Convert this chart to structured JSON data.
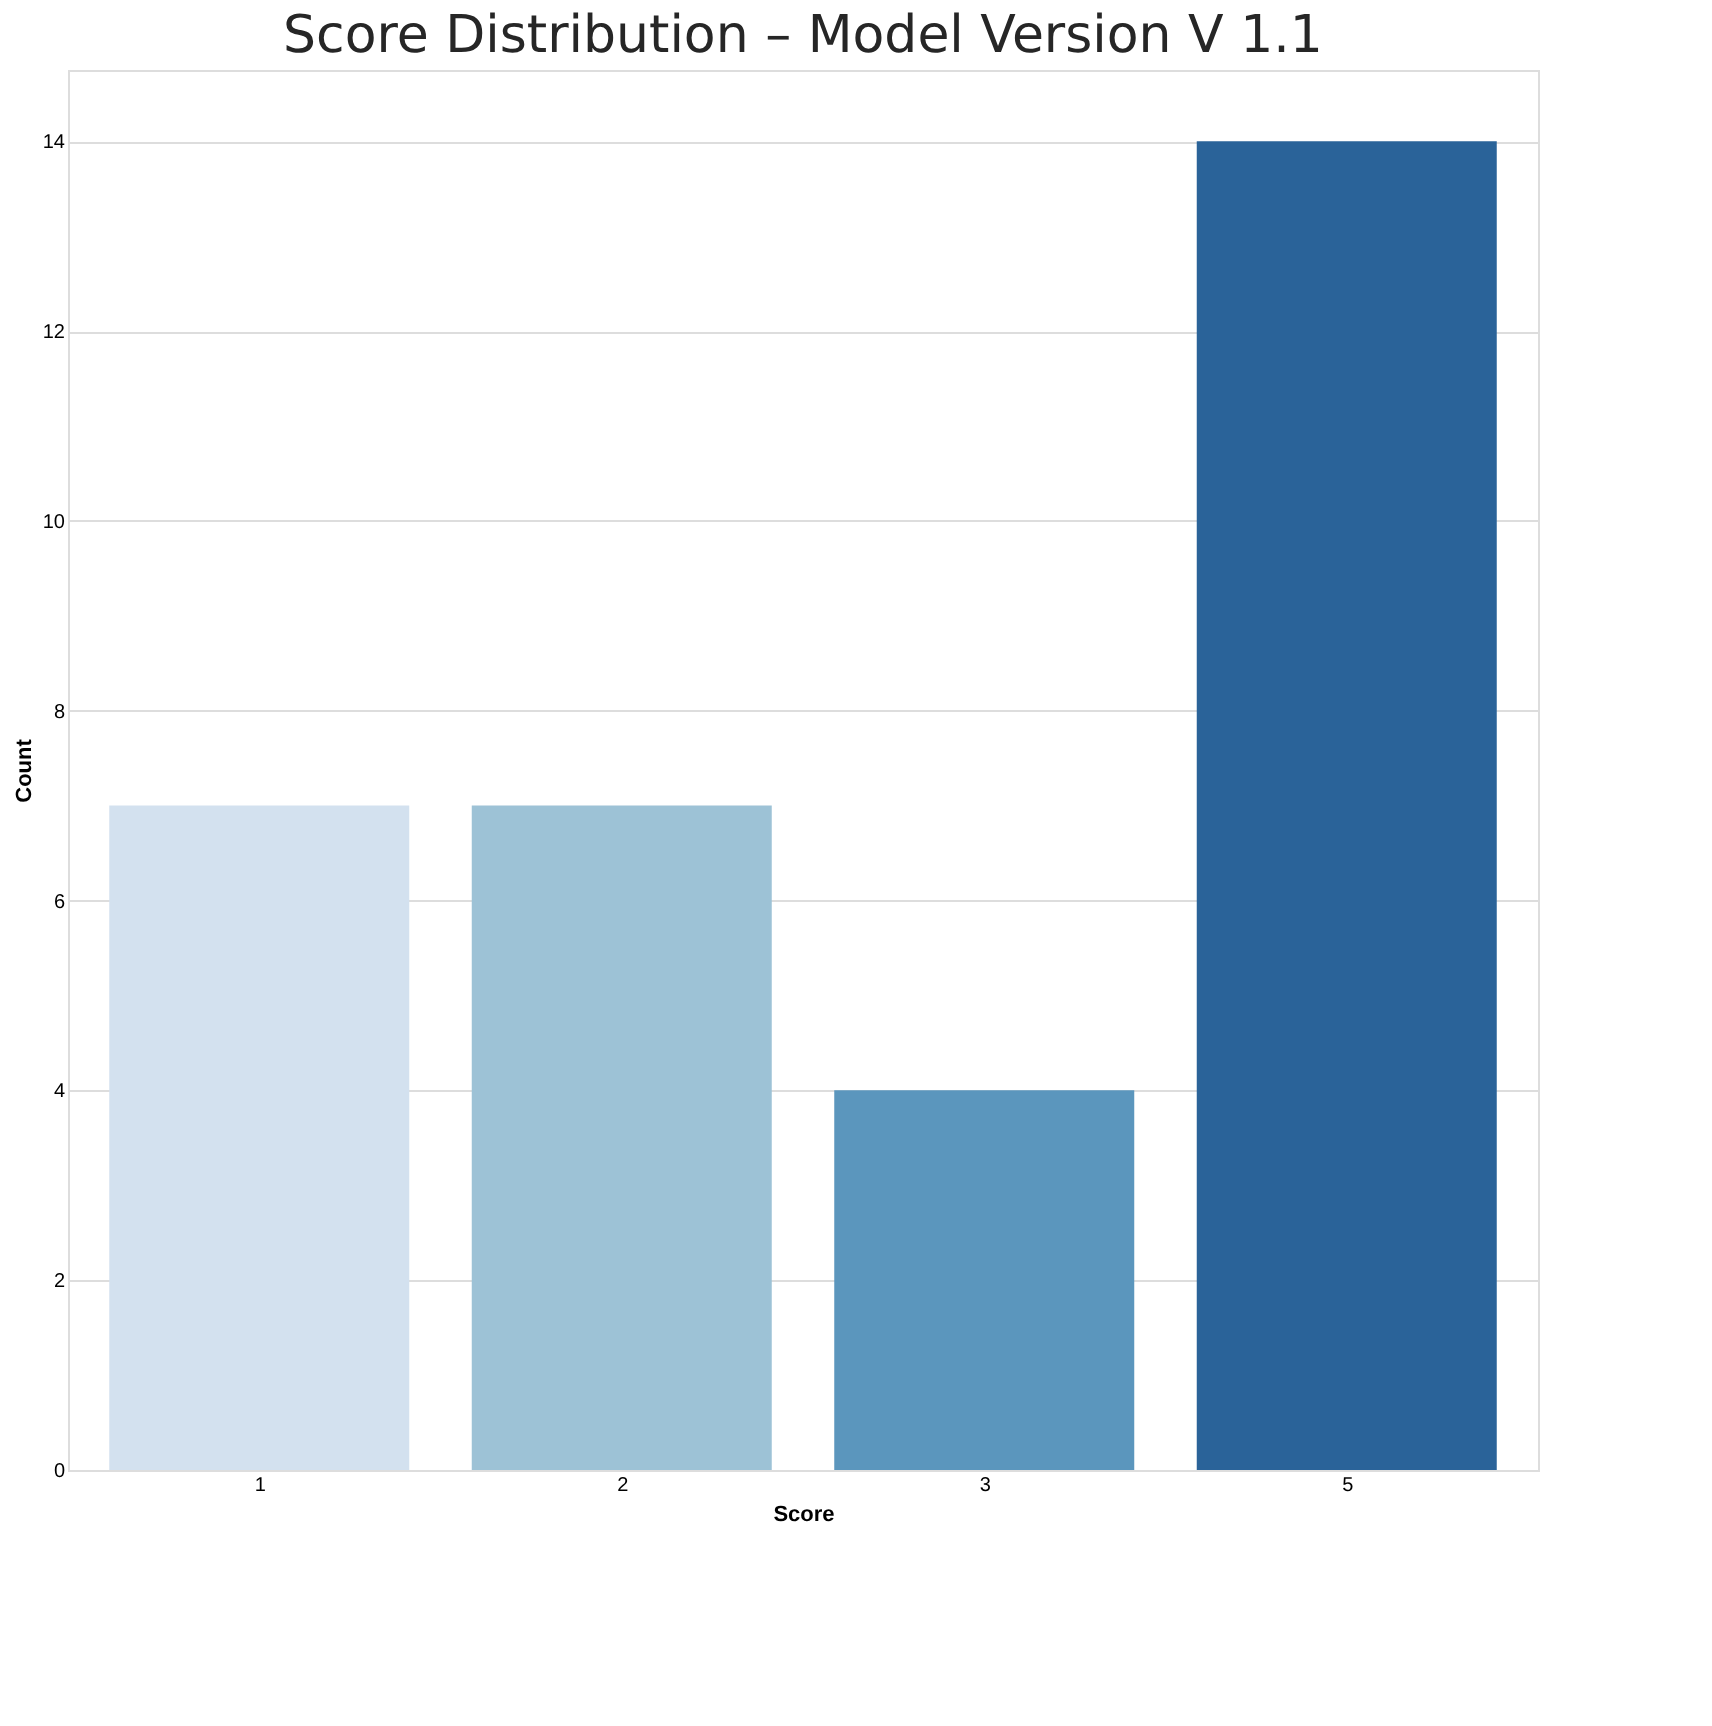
{
  "chart_data": {
    "type": "bar",
    "title": "Score Distribution – Model Version V 1.1",
    "xlabel": "Score",
    "ylabel": "Count",
    "categories": [
      "1",
      "2",
      "3",
      "5"
    ],
    "values": [
      7,
      7,
      4,
      14
    ],
    "colors": [
      "#d3e1ef",
      "#9dc2d6",
      "#5b96bd",
      "#2a6399"
    ],
    "ylim": [
      0,
      14.75
    ],
    "yticks": [
      0,
      2,
      4,
      6,
      8,
      10,
      12,
      14
    ],
    "grid": "y"
  }
}
